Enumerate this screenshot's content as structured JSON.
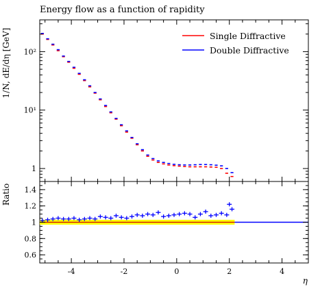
{
  "chart_data": {
    "type": "line",
    "title": "Energy flow as a function of rapidity",
    "xlabel": "η",
    "ylabel": "1/N, dE/dη [GeV]",
    "ratio_ylabel": "Ratio",
    "xlim": [
      -5.2,
      5.0
    ],
    "ylim": [
      0.6,
      350
    ],
    "yscale": "log",
    "ratio_ylim": [
      0.5,
      1.5
    ],
    "x_ticks": [
      "-4",
      "-2",
      "0",
      "2",
      "4"
    ],
    "x_tick_values": [
      -4,
      -2,
      0,
      2,
      4
    ],
    "y_ticks": [
      "10²",
      "10¹",
      "1"
    ],
    "y_tick_values": [
      100,
      10,
      1
    ],
    "ratio_ticks": [
      "1.4",
      "1.2",
      "1",
      "0.8",
      "0.6"
    ],
    "ratio_tick_values": [
      1.4,
      1.2,
      1.0,
      0.8,
      0.6
    ],
    "legend_position": "top-right",
    "x": [
      -5.1,
      -4.9,
      -4.7,
      -4.5,
      -4.3,
      -4.1,
      -3.9,
      -3.7,
      -3.5,
      -3.3,
      -3.1,
      -2.9,
      -2.7,
      -2.5,
      -2.3,
      -2.1,
      -1.9,
      -1.7,
      -1.5,
      -1.3,
      -1.1,
      -0.9,
      -0.7,
      -0.5,
      -0.3,
      -0.1,
      0.1,
      0.3,
      0.5,
      0.7,
      0.9,
      1.1,
      1.3,
      1.5,
      1.7,
      1.9,
      2.1
    ],
    "series": [
      {
        "name": "Single Diffractive",
        "color": "#ff0000",
        "values": [
          200,
          162,
          130,
          104,
          82,
          66,
          52,
          41,
          32,
          25,
          19.5,
          15,
          11.5,
          9,
          7,
          5.4,
          4.2,
          3.3,
          2.55,
          2.0,
          1.62,
          1.4,
          1.27,
          1.2,
          1.15,
          1.12,
          1.1,
          1.08,
          1.07,
          1.07,
          1.07,
          1.07,
          1.06,
          1.05,
          1.0,
          0.83,
          0.73
        ]
      },
      {
        "name": "Double Diffractive",
        "color": "#0000ff",
        "values": [
          205,
          166,
          134,
          108,
          84,
          68,
          54,
          42.5,
          33,
          26,
          20,
          15.5,
          12,
          9.3,
          7.2,
          5.6,
          4.4,
          3.4,
          2.65,
          2.1,
          1.7,
          1.48,
          1.35,
          1.27,
          1.22,
          1.18,
          1.16,
          1.15,
          1.15,
          1.16,
          1.17,
          1.17,
          1.16,
          1.14,
          1.11,
          1.0,
          0.85
        ]
      }
    ],
    "ratio_values": [
      1.02,
      1.03,
      1.04,
      1.05,
      1.04,
      1.04,
      1.05,
      1.03,
      1.04,
      1.05,
      1.04,
      1.07,
      1.06,
      1.05,
      1.08,
      1.06,
      1.05,
      1.07,
      1.09,
      1.08,
      1.1,
      1.09,
      1.12,
      1.07,
      1.08,
      1.09,
      1.1,
      1.11,
      1.1,
      1.06,
      1.1,
      1.13,
      1.08,
      1.09,
      1.11,
      1.09,
      1.22,
      1.16
    ],
    "ratio_x": [
      -5.1,
      -4.9,
      -4.7,
      -4.5,
      -4.3,
      -4.1,
      -3.9,
      -3.7,
      -3.5,
      -3.3,
      -3.1,
      -2.9,
      -2.7,
      -2.5,
      -2.3,
      -2.1,
      -1.9,
      -1.7,
      -1.5,
      -1.3,
      -1.1,
      -0.9,
      -0.7,
      -0.5,
      -0.3,
      -0.1,
      0.1,
      0.3,
      0.5,
      0.7,
      0.9,
      1.1,
      1.3,
      1.5,
      1.7,
      1.9,
      2.0,
      2.1
    ],
    "ratio_band": {
      "x_start": -5.2,
      "x_end": 2.2,
      "low": 0.97,
      "high": 1.03,
      "color": "#ffff00"
    }
  }
}
